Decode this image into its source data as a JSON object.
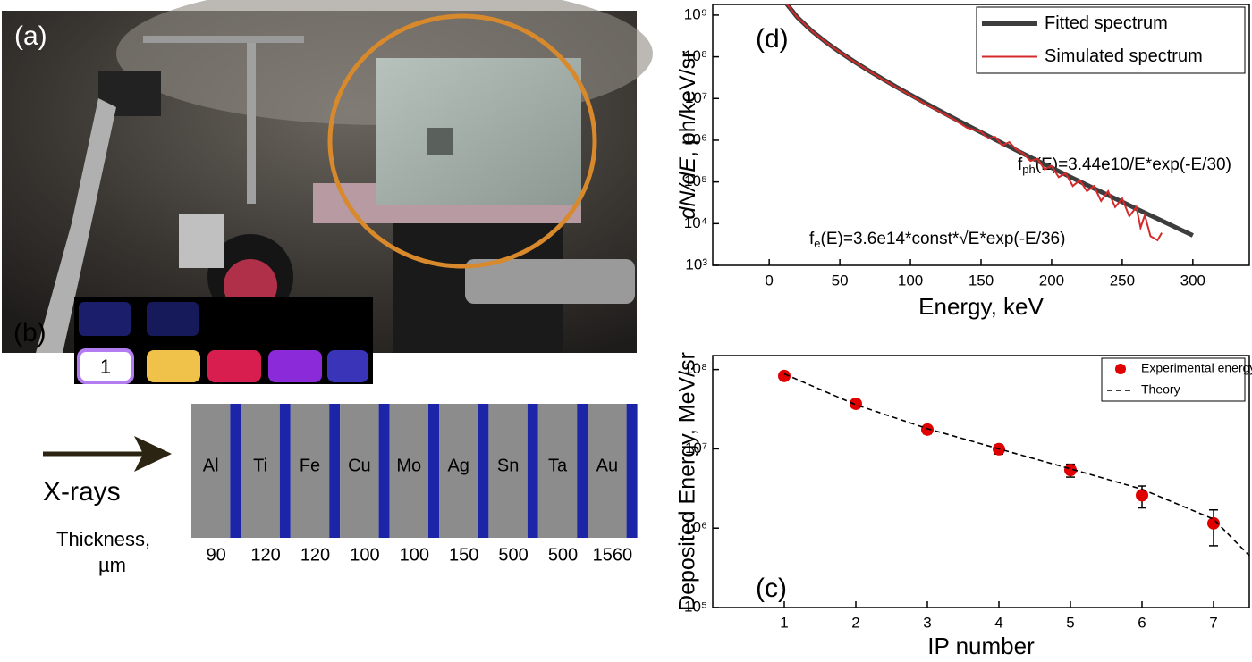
{
  "photo": {
    "label": "(a)"
  },
  "diagram": {
    "label": "(b)",
    "plate_label": "1",
    "arrow_label": "X-rays",
    "thickness_label": [
      "Thickness,",
      "µm"
    ],
    "filters": [
      {
        "name": "Al",
        "thickness": 90
      },
      {
        "name": "Ti",
        "thickness": 120
      },
      {
        "name": "Fe",
        "thickness": 120
      },
      {
        "name": "Cu",
        "thickness": 100
      },
      {
        "name": "Mo",
        "thickness": 100
      },
      {
        "name": "Ag",
        "thickness": 150
      },
      {
        "name": "Sn",
        "thickness": 500
      },
      {
        "name": "Ta",
        "thickness": 500
      },
      {
        "name": "Au",
        "thickness": 1560
      }
    ]
  },
  "chart_data": [
    {
      "type": "line",
      "panel_label": "(d)",
      "xlabel": "Energy, keV",
      "ylabel": {
        "italic": "dN/dE",
        "rest": ", ph/keV/sr"
      },
      "log_y": true,
      "xlim": [
        -40,
        340
      ],
      "ylim": [
        1000,
        1800000000
      ],
      "xticks": [
        0,
        50,
        100,
        150,
        200,
        250,
        300
      ],
      "yticks": [
        {
          "value": 1000,
          "label": "10³"
        },
        {
          "value": 10000,
          "label": "10⁴"
        },
        {
          "value": 100000,
          "label": "10⁵"
        },
        {
          "value": 1000000,
          "label": "10⁶"
        },
        {
          "value": 10000000,
          "label": "10⁷"
        },
        {
          "value": 100000000,
          "label": "10⁸"
        },
        {
          "value": 1000000000,
          "label": "10⁹"
        }
      ],
      "legend": "upper right",
      "annotations": [
        {
          "text": "f",
          "sub": "ph",
          "rest": "(E)=3.44e10/E*exp(-E/30)"
        },
        {
          "text": "f",
          "sub": "e",
          "rest": "(E)=3.6e14*const*√E*exp(-E/36)"
        }
      ],
      "series": [
        {
          "name": "Fitted spectrum",
          "color": "#3d3d3d",
          "width": 5,
          "x": [
            12,
            20,
            30,
            40,
            50,
            60,
            70,
            80,
            90,
            100,
            110,
            120,
            130,
            140,
            150,
            160,
            170,
            180,
            190,
            200,
            210,
            220,
            230,
            240,
            250,
            260,
            270,
            280,
            290,
            300
          ],
          "values": [
            1920000000,
            883000000,
            422000000,
            227000000,
            130000000,
            77600000,
            47700000,
            29900000,
            19000000,
            12300000,
            7990000,
            5250000,
            3470000,
            2310000,
            1550000,
            1040000,
            700000,
            474000,
            322000,
            219000,
            149000,
            102000,
            70000,
            48100,
            33100,
            22800,
            15700,
            10900,
            7510,
            5210
          ]
        },
        {
          "name": "Simulated spectrum",
          "color": "#d42a2a",
          "width": 2,
          "x": [
            12,
            20,
            30,
            40,
            50,
            60,
            70,
            80,
            90,
            100,
            110,
            120,
            130,
            140,
            150,
            155,
            160,
            165,
            170,
            175,
            180,
            185,
            190,
            195,
            200,
            205,
            210,
            215,
            220,
            225,
            230,
            235,
            240,
            245,
            250,
            255,
            260,
            263,
            266,
            270,
            275,
            278
          ],
          "values": [
            1920000000,
            880000000,
            420000000,
            225000000,
            130000000,
            77000000,
            47000000,
            29500000,
            18500000,
            12000000,
            7600000,
            5000000,
            3300000,
            2000000,
            1600000,
            1100000,
            1200000,
            750000,
            900000,
            600000,
            480000,
            320000,
            360000,
            200000,
            240000,
            130000,
            160000,
            80000,
            110000,
            60000,
            80000,
            35000,
            60000,
            25000,
            40000,
            15000,
            25000,
            8000,
            16000,
            5000,
            4000,
            6000
          ]
        }
      ]
    },
    {
      "type": "scatter",
      "panel_label": "(c)",
      "xlabel": "IP number",
      "ylabel": "Deposited Energy, MeV/sr",
      "log_y": true,
      "xlim": [
        0,
        7.5
      ],
      "ylim": [
        100000,
        150000000
      ],
      "xticks": [
        1,
        2,
        3,
        4,
        5,
        6,
        7
      ],
      "yticks": [
        {
          "value": 100000,
          "label": "10⁵"
        },
        {
          "value": 1000000,
          "label": "10⁶"
        },
        {
          "value": 10000000,
          "label": "10⁷"
        },
        {
          "value": 100000000,
          "label": "10⁸"
        }
      ],
      "legend": "upper right",
      "x": [
        1,
        2,
        3,
        4,
        5,
        6,
        7
      ],
      "series": [
        {
          "name": "Experimental energy deposition",
          "color": "#e00000",
          "values": [
            83000000,
            37000000,
            17500000,
            9900000,
            5400000,
            2600000,
            1150000
          ],
          "errors": [
            10000000,
            4000000,
            2000000,
            1300000,
            1000000,
            800000,
            550000
          ]
        },
        {
          "name": "Theory",
          "color": "#000000",
          "dashed": true,
          "x": [
            1,
            2,
            3,
            4,
            5,
            6,
            7,
            7.5
          ],
          "values": [
            88000000,
            36000000,
            18000000,
            10000000,
            5600000,
            3100000,
            1300000,
            450000
          ]
        }
      ]
    }
  ]
}
